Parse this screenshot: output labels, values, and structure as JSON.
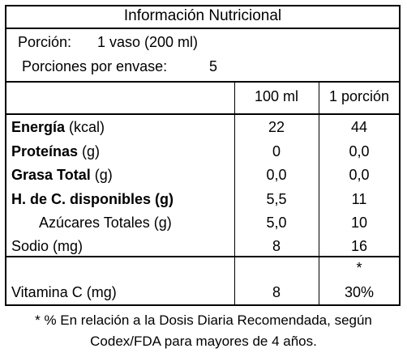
{
  "title": "Información Nutricional",
  "portion": {
    "label": "Porción:",
    "value": "1 vaso (200 ml)"
  },
  "servings": {
    "label": "Porciones por envase:",
    "value": "5"
  },
  "columns": {
    "per100": "100 ml",
    "perPortion": "1 porción"
  },
  "rows": [
    {
      "label_bold": "Energía",
      "label_rest": " (kcal)",
      "v100": "22",
      "vp": "44"
    },
    {
      "label_bold": "Proteínas",
      "label_rest": " (g)",
      "v100": "0",
      "vp": "0,0"
    },
    {
      "label_bold": "Grasa Total",
      "label_rest": " (g)",
      "v100": "0,0",
      "vp": "0,0"
    },
    {
      "label_bold": "H. de C. disponibles (g)",
      "label_rest": "",
      "v100": "5,5",
      "vp": "11"
    },
    {
      "label_bold": "",
      "label_rest": "Azúcares Totales (g)",
      "v100": "5,0",
      "vp": "10"
    },
    {
      "label_bold": "",
      "label_rest": "Sodio (mg)",
      "v100": "8",
      "vp": "16"
    }
  ],
  "vitamin": {
    "asterisk": "*",
    "label": "Vitamina C (mg)",
    "v100": "8",
    "vp": "30%"
  },
  "footnote": {
    "line1": "* % En relación a la Dosis Diaria Recomendada, según",
    "line2": "Codex/FDA para mayores de 4 años."
  }
}
